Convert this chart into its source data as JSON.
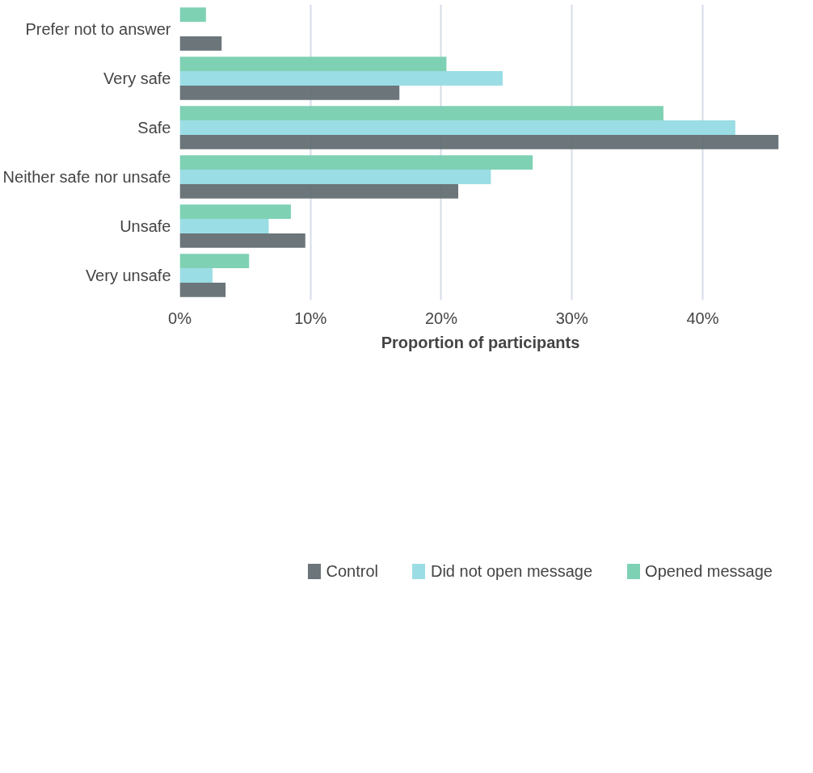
{
  "chart_data": {
    "type": "bar",
    "orientation": "horizontal",
    "xlabel": "Proportion of participants",
    "categories": [
      "Prefer not to answer",
      "Very safe",
      "Safe",
      "Neither safe nor unsafe",
      "Unsafe",
      "Very unsafe"
    ],
    "series": [
      {
        "name": "Control",
        "color": "#636e73",
        "values": [
          3.2,
          16.8,
          45.8,
          21.3,
          9.6,
          3.5
        ]
      },
      {
        "name": "Did not open message",
        "color": "#96dbe3",
        "values": [
          null,
          24.7,
          42.5,
          23.8,
          6.8,
          2.5
        ]
      },
      {
        "name": "Opened message",
        "color": "#78cfb0",
        "values": [
          2.0,
          20.4,
          37.0,
          27.0,
          8.5,
          5.3
        ]
      }
    ],
    "xlim": [
      0,
      46
    ],
    "xticks": [
      {
        "value": 0,
        "label": "0%"
      },
      {
        "value": 10,
        "label": "10%"
      },
      {
        "value": 20,
        "label": "20%"
      },
      {
        "value": 30,
        "label": "30%"
      },
      {
        "value": 40,
        "label": "40%"
      }
    ],
    "grid": "x",
    "legend": "bottom"
  }
}
